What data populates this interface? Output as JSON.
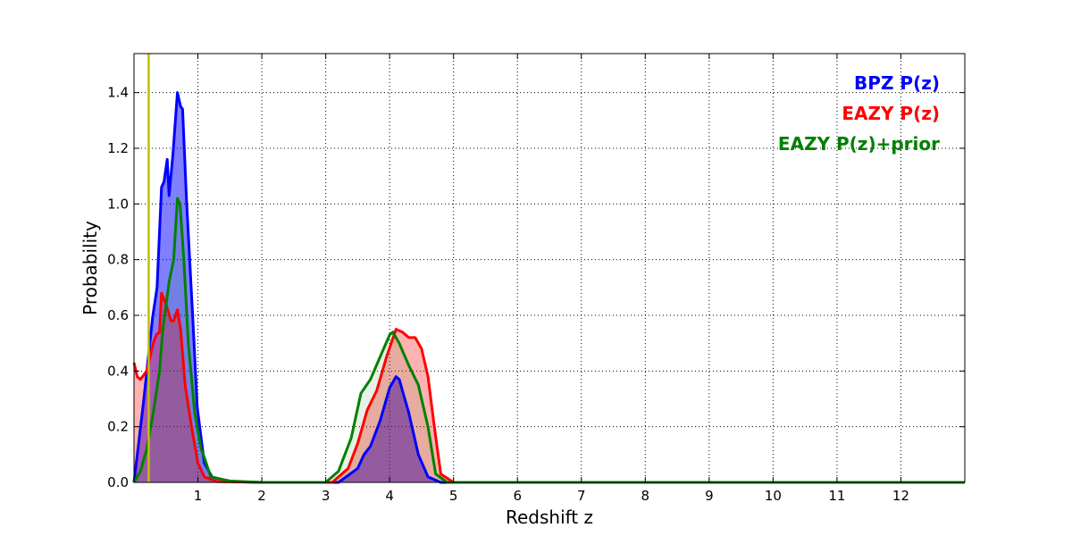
{
  "chart_data": {
    "type": "area",
    "title": "",
    "xlabel": "Redshift z",
    "ylabel": "Probability",
    "xlim": [
      0,
      13
    ],
    "ylim": [
      0,
      1.54
    ],
    "xticks": [
      1,
      2,
      3,
      4,
      5,
      6,
      7,
      8,
      9,
      10,
      11,
      12
    ],
    "yticks": [
      0.0,
      0.2,
      0.4,
      0.6,
      0.8,
      1.0,
      1.2,
      1.4
    ],
    "ytick_labels": [
      "0.0",
      "0.2",
      "0.4",
      "0.6",
      "0.8",
      "1.0",
      "1.2",
      "1.4"
    ],
    "grid": true,
    "legend_position": "top-right",
    "vline": {
      "x": 0.23,
      "color": "#bfbf00"
    },
    "series": [
      {
        "name": "BPZ P(z)",
        "color": "#0000ff",
        "fill_opacity": 0.5,
        "x": [
          0,
          0.15,
          0.29,
          0.36,
          0.43,
          0.47,
          0.52,
          0.55,
          0.61,
          0.68,
          0.73,
          0.76,
          0.82,
          0.92,
          0.99,
          1.1,
          1.22,
          1.5,
          2,
          3.2,
          3.5,
          3.6,
          3.7,
          3.85,
          4.0,
          4.1,
          4.15,
          4.3,
          4.45,
          4.6,
          4.8,
          13
        ],
        "y": [
          0,
          0.29,
          0.59,
          0.7,
          1.06,
          1.08,
          1.16,
          1.03,
          1.18,
          1.4,
          1.35,
          1.34,
          1.02,
          0.59,
          0.27,
          0.07,
          0.02,
          0.003,
          0,
          0,
          0.05,
          0.1,
          0.13,
          0.22,
          0.34,
          0.38,
          0.37,
          0.25,
          0.1,
          0.02,
          0,
          0
        ]
      },
      {
        "name": "EAZY P(z)",
        "color": "#ff0000",
        "fill_opacity": 0.3,
        "x": [
          0,
          0.05,
          0.1,
          0.2,
          0.3,
          0.35,
          0.4,
          0.43,
          0.5,
          0.58,
          0.62,
          0.68,
          0.73,
          0.8,
          0.9,
          1.0,
          1.1,
          1.3,
          2,
          3.1,
          3.35,
          3.5,
          3.65,
          3.8,
          3.95,
          4.1,
          4.2,
          4.3,
          4.4,
          4.5,
          4.6,
          4.7,
          4.8,
          5.0,
          13
        ],
        "y": [
          0.43,
          0.38,
          0.37,
          0.4,
          0.5,
          0.53,
          0.54,
          0.68,
          0.64,
          0.58,
          0.58,
          0.62,
          0.55,
          0.35,
          0.2,
          0.07,
          0.02,
          0.003,
          0,
          0,
          0.05,
          0.14,
          0.26,
          0.33,
          0.45,
          0.55,
          0.54,
          0.52,
          0.52,
          0.48,
          0.38,
          0.2,
          0.03,
          0,
          0
        ]
      },
      {
        "name": "EAZY P(z)+prior",
        "color": "#008000",
        "fill_opacity": 0.1,
        "x": [
          0,
          0.1,
          0.2,
          0.3,
          0.4,
          0.45,
          0.55,
          0.62,
          0.68,
          0.72,
          0.78,
          0.85,
          0.95,
          1.05,
          1.1,
          1.2,
          1.5,
          2,
          3.0,
          3.2,
          3.4,
          3.55,
          3.7,
          3.85,
          4.0,
          4.05,
          4.15,
          4.3,
          4.45,
          4.6,
          4.72,
          4.9,
          13
        ],
        "y": [
          0,
          0.04,
          0.12,
          0.25,
          0.4,
          0.55,
          0.72,
          0.8,
          1.02,
          1.0,
          0.8,
          0.5,
          0.25,
          0.12,
          0.09,
          0.02,
          0.005,
          0,
          0,
          0.04,
          0.16,
          0.32,
          0.37,
          0.45,
          0.53,
          0.54,
          0.5,
          0.42,
          0.35,
          0.2,
          0.03,
          0,
          0
        ]
      }
    ]
  }
}
